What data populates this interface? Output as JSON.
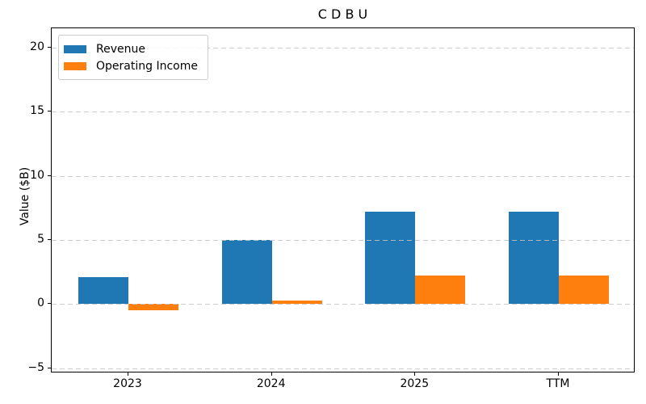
{
  "chart_data": {
    "type": "bar",
    "title": "C D B U",
    "xlabel": "",
    "ylabel": "Value ($B)",
    "categories": [
      "2023",
      "2024",
      "2025",
      "TTM"
    ],
    "series": [
      {
        "name": "Revenue",
        "color": "#1f77b4",
        "values": [
          2.1,
          5.0,
          7.2,
          7.2
        ]
      },
      {
        "name": "Operating Income",
        "color": "#ff7f0e",
        "values": [
          -0.5,
          0.3,
          2.2,
          2.2
        ]
      }
    ],
    "yticks": [
      -5,
      0,
      5,
      10,
      15,
      20
    ],
    "ylim": [
      -5.4,
      21.5
    ],
    "bar_width": 0.35,
    "grid": "horizontal-dashed",
    "legend_position": "upper-left",
    "background_color": "#ffffff",
    "gridline_color": "#c5c5c5",
    "axis_color": "#000000"
  }
}
